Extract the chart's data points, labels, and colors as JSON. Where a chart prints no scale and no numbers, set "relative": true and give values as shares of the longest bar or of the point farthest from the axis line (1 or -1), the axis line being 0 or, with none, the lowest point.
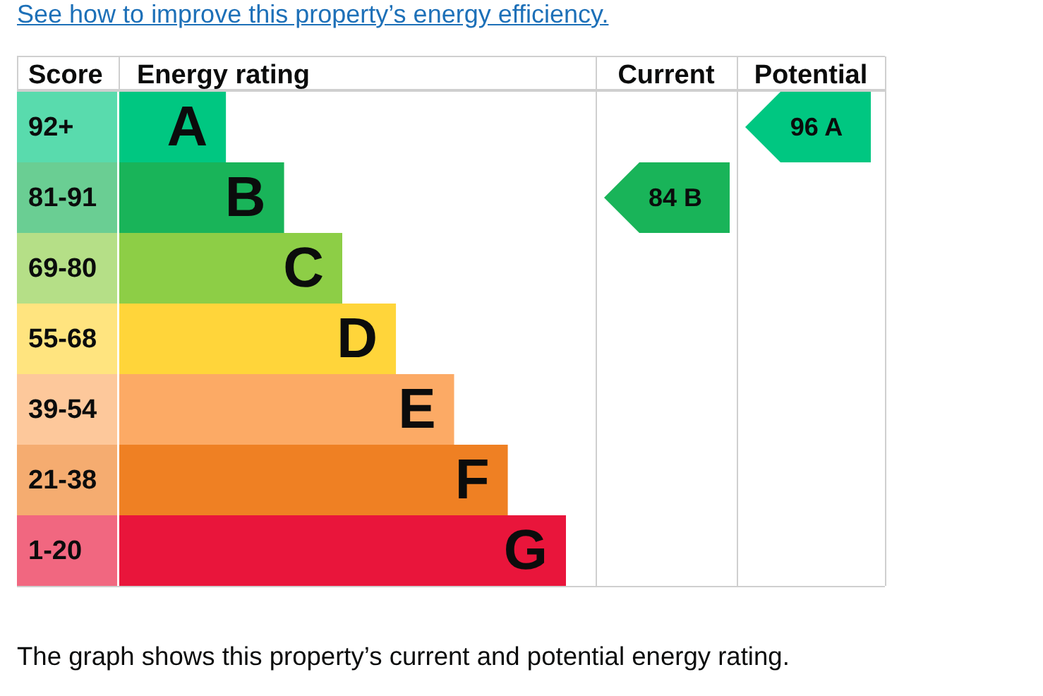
{
  "chart_data": {
    "type": "bar",
    "orientation": "horizontal",
    "relative": true,
    "xlabel": "Energy rating",
    "ylabel": "Score",
    "categories": [
      "92+",
      "81-91",
      "69-80",
      "55-68",
      "39-54",
      "21-38",
      "1-20"
    ],
    "values": [
      0.24,
      0.37,
      0.5,
      0.62,
      0.75,
      0.87,
      1
    ],
    "colors": [
      "#00c781",
      "#19b459",
      "#8dce46",
      "#ffd53a",
      "#fcaa65",
      "#ef8023",
      "#e9153b"
    ],
    "annotations": [
      "See how to improve this property’s energy efficiency.",
      "Current",
      "Potential",
      "84 B",
      "96 A",
      {
        "text": "A",
        "x": 0.24,
        "y": "92+"
      },
      {
        "text": "B",
        "x": 0.37,
        "y": "81-91"
      },
      {
        "text": "C",
        "x": 0.5,
        "y": "69-80"
      },
      {
        "text": "D",
        "x": 0.62,
        "y": "55-68"
      },
      {
        "text": "E",
        "x": 0.75,
        "y": "39-54"
      },
      {
        "text": "F",
        "x": 0.87,
        "y": "21-38"
      },
      {
        "text": "G",
        "x": 1,
        "y": "1-20"
      },
      "The graph shows this property’s current and potential energy rating."
    ]
  }
}
